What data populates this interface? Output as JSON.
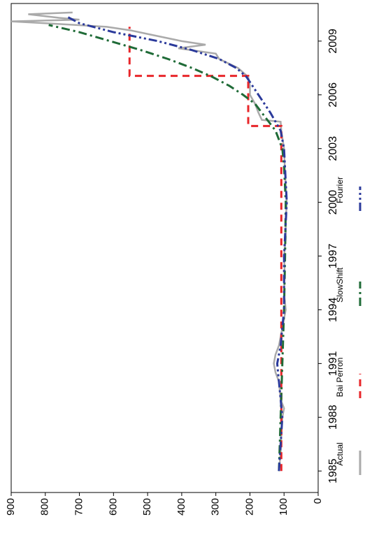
{
  "chart_data": {
    "type": "line",
    "xlim": [
      1983.8,
      2011.1
    ],
    "xticks": [
      1985,
      1988,
      1991,
      1994,
      1997,
      2000,
      2003,
      2006,
      2009
    ],
    "ylim": [
      0,
      900
    ],
    "yticks": [
      0,
      100,
      200,
      300,
      400,
      500,
      600,
      700,
      800,
      900
    ],
    "legend": "bottom",
    "series": [
      {
        "name": "Actual",
        "color": "#aaaaaa",
        "dash": "none",
        "x": [
          1985,
          1986,
          1987,
          1988,
          1988.5,
          1989,
          1990,
          1990.5,
          1991,
          1991.5,
          1992,
          1993,
          1994,
          1995,
          1996,
          1997,
          1998,
          1999,
          2000,
          2001,
          2002,
          2003,
          2004,
          2004.5,
          2004.6,
          2005,
          2005.5,
          2006,
          2006.5,
          2007,
          2007.5,
          2008,
          2008.3,
          2008.6,
          2008.8,
          2009,
          2009.2,
          2009.4,
          2009.6,
          2009.8,
          2010,
          2010.1,
          2010.2,
          2010.3,
          2010.5,
          2010.6
        ],
        "values": [
          115,
          110,
          108,
          105,
          100,
          110,
          115,
          125,
          130,
          125,
          115,
          105,
          95,
          100,
          98,
          100,
          95,
          95,
          92,
          95,
          98,
          100,
          108,
          110,
          165,
          175,
          185,
          200,
          200,
          205,
          235,
          290,
          300,
          410,
          330,
          400,
          450,
          500,
          550,
          620,
          800,
          900,
          700,
          760,
          850,
          720
        ]
      },
      {
        "name": "Bai Perron",
        "color": "#e8262a",
        "dash": "10 7",
        "x": [
          1985,
          2004.26,
          2004.26,
          2007.06,
          2007.06,
          2009.8
        ],
        "values": [
          108,
          108,
          205,
          205,
          553,
          553
        ]
      },
      {
        "name": "SlowShift",
        "color": "#1f6b37",
        "dash": "12 5 3 5",
        "x": [
          1985,
          1988,
          1991,
          1994,
          1997,
          2000,
          2002,
          2003,
          2004,
          2005,
          2005.5,
          2006,
          2006.5,
          2007,
          2007.5,
          2008,
          2008.5,
          2009,
          2009.5,
          2009.9
        ],
        "values": [
          115,
          110,
          105,
          100,
          97,
          95,
          100,
          105,
          125,
          165,
          185,
          220,
          260,
          310,
          370,
          440,
          520,
          610,
          700,
          790
        ]
      },
      {
        "name": "Fourier",
        "color": "#2b3a9b",
        "dash": "12 4 3 4 3 4",
        "x": [
          1985,
          1988,
          1990,
          1991,
          1992,
          1994,
          1997,
          2000,
          2003,
          2004,
          2005,
          2006,
          2007,
          2007.5,
          2008,
          2008.5,
          2009,
          2009.5,
          2010,
          2010.4
        ],
        "values": [
          115,
          105,
          115,
          120,
          110,
          100,
          100,
          92,
          100,
          110,
          140,
          175,
          210,
          240,
          290,
          370,
          470,
          600,
          700,
          740
        ]
      }
    ]
  }
}
